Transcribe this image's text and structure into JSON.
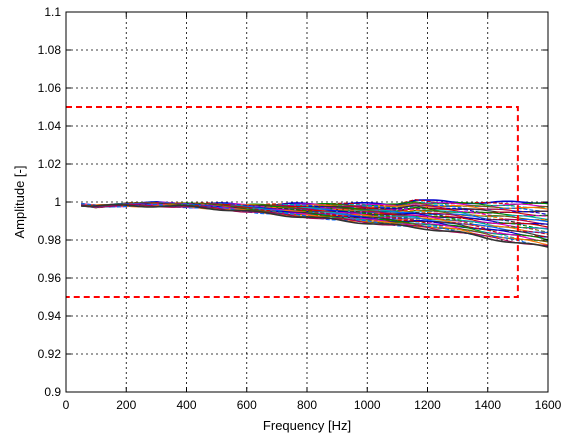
{
  "chart_data": {
    "type": "line",
    "title": "",
    "xlabel": "Frequency [Hz]",
    "ylabel": "Amplitude [-]",
    "xlim": [
      0,
      1600
    ],
    "ylim": [
      0.9,
      1.1
    ],
    "xticks": [
      "0",
      "200",
      "400",
      "600",
      "800",
      "1000",
      "1200",
      "1400",
      "1600"
    ],
    "yticks": [
      "0.9",
      "0.92",
      "0.94",
      "0.96",
      "0.98",
      "1",
      "1.02",
      "1.04",
      "1.06",
      "1.08",
      "1.1"
    ],
    "grid": true,
    "legend": "none",
    "tolerance_box": {
      "x": [
        0,
        1500
      ],
      "y": [
        0.95,
        1.05
      ],
      "color": "#ff0000",
      "style": "dashed"
    },
    "curves": {
      "count": 40,
      "x_range": [
        50,
        1600
      ],
      "upper_envelope": [
        [
          50,
          0.9985
        ],
        [
          100,
          0.9975
        ],
        [
          200,
          0.999
        ],
        [
          300,
          0.9995
        ],
        [
          400,
          0.999
        ],
        [
          500,
          0.999
        ],
        [
          600,
          0.9985
        ],
        [
          700,
          0.9985
        ],
        [
          800,
          0.999
        ],
        [
          900,
          0.999
        ],
        [
          1000,
          0.999
        ],
        [
          1100,
          0.999
        ],
        [
          1160,
          1.001
        ],
        [
          1200,
          1.0005
        ],
        [
          1300,
          1.0
        ],
        [
          1400,
          0.9995
        ],
        [
          1500,
          1.0
        ],
        [
          1600,
          1.0
        ]
      ],
      "lower_envelope": [
        [
          50,
          0.9985
        ],
        [
          100,
          0.998
        ],
        [
          200,
          0.998
        ],
        [
          300,
          0.998
        ],
        [
          400,
          0.9975
        ],
        [
          500,
          0.9965
        ],
        [
          600,
          0.995
        ],
        [
          700,
          0.9935
        ],
        [
          800,
          0.992
        ],
        [
          900,
          0.9905
        ],
        [
          1000,
          0.989
        ],
        [
          1100,
          0.9875
        ],
        [
          1200,
          0.986
        ],
        [
          1300,
          0.984
        ],
        [
          1400,
          0.981
        ],
        [
          1500,
          0.9785
        ],
        [
          1600,
          0.976
        ]
      ],
      "colors": [
        "#0000cc",
        "#cc0000",
        "#008800",
        "#cc00cc",
        "#00aaaa",
        "#666600",
        "#ff7700",
        "#0066ff",
        "#aa0055",
        "#333333"
      ]
    }
  }
}
